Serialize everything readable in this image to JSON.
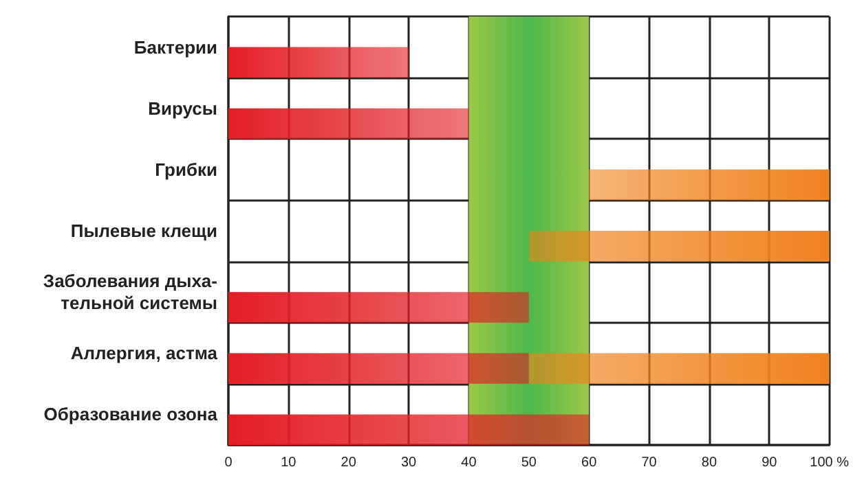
{
  "chart_data": {
    "type": "bar",
    "orientation": "horizontal",
    "categories": [
      "Бактерии",
      "Вирусы",
      "Грибки",
      "Пылевые клещи",
      "Заболевания дыха-\nтельной системы",
      "Аллергия, астма",
      "Образование озона"
    ],
    "series": [
      {
        "color": "#e31e24",
        "base": [
          0,
          0,
          null,
          null,
          0,
          0,
          0
        ],
        "values": [
          30,
          40,
          null,
          null,
          50,
          50,
          60
        ]
      },
      {
        "color": "#f0821e",
        "base": [
          null,
          null,
          60,
          50,
          null,
          50,
          null
        ],
        "values": [
          null,
          null,
          40,
          50,
          null,
          50,
          null
        ]
      }
    ],
    "xlim": [
      0,
      100
    ],
    "xticks": [
      0,
      10,
      20,
      30,
      40,
      50,
      60,
      70,
      80,
      90,
      {
        "value": 100,
        "label": "100 %"
      }
    ],
    "bands": [
      {
        "axis": "x",
        "from": 40,
        "to": 60,
        "color": "#4cb848"
      }
    ],
    "grid": true
  }
}
